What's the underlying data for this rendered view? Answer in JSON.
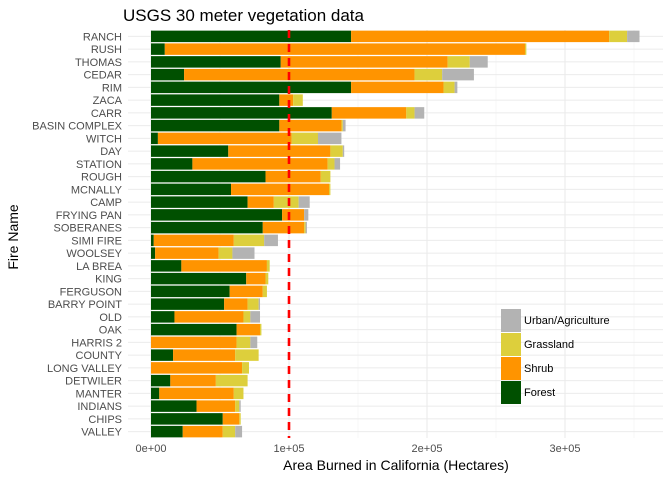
{
  "chart_data": {
    "type": "bar",
    "orientation": "horizontal",
    "stacked": true,
    "title": "USGS 30 meter vegetation data",
    "xlabel": "Area Burned in California (Hectares)",
    "ylabel": "Fire Name",
    "xlim": [
      0,
      370000
    ],
    "x_ticks": [
      0,
      100000,
      200000,
      300000
    ],
    "x_tick_labels": [
      "0e+00",
      "1e+05",
      "2e+05",
      "3e+05"
    ],
    "grid": true,
    "legend_position": "bottom-right",
    "reference_line": {
      "x": 100000,
      "style": "dashed",
      "color": "#ff0000"
    },
    "categories": [
      "RANCH",
      "RUSH",
      "THOMAS",
      "CEDAR",
      "RIM",
      "ZACA",
      "CARR",
      "BASIN COMPLEX",
      "WITCH",
      "DAY",
      "STATION",
      "ROUGH",
      "MCNALLY",
      "CAMP",
      "FRYING PAN",
      "SOBERANES",
      "SIMI FIRE",
      "WOOLSEY",
      "LA BREA",
      "KING",
      "FERGUSON",
      "BARRY POINT",
      "OLD",
      "OAK",
      "HARRIS 2",
      "COUNTY",
      "LONG VALLEY",
      "DETWILER",
      "MANTER",
      "INDIANS",
      "CHIPS",
      "VALLEY"
    ],
    "series": [
      {
        "name": "Forest",
        "color": "#005000",
        "values": [
          145000,
          10000,
          94000,
          24000,
          145000,
          93000,
          131000,
          93000,
          5000,
          56000,
          30000,
          83000,
          58000,
          70000,
          95000,
          81000,
          2000,
          3000,
          22000,
          69000,
          57000,
          53000,
          17000,
          62000,
          0,
          16000,
          0,
          14000,
          6000,
          33000,
          52000,
          23000
        ]
      },
      {
        "name": "Shrub",
        "color": "#ff9400",
        "values": [
          187000,
          261000,
          121000,
          167000,
          67000,
          10000,
          54000,
          45000,
          97000,
          74000,
          98000,
          40000,
          71000,
          19000,
          16000,
          30000,
          58000,
          46000,
          62000,
          14000,
          24000,
          17000,
          50000,
          17000,
          62000,
          45000,
          66000,
          33000,
          54000,
          28000,
          12000,
          29000
        ]
      },
      {
        "name": "Grassland",
        "color": "#ddcf3c",
        "values": [
          13000,
          1000,
          16000,
          20000,
          8000,
          7000,
          6000,
          1000,
          19000,
          9000,
          5000,
          7000,
          1000,
          18000,
          0,
          1000,
          22000,
          10000,
          2000,
          2000,
          3000,
          8000,
          5000,
          1000,
          10000,
          17000,
          5000,
          23000,
          7000,
          3000,
          1000,
          9000
        ]
      },
      {
        "name": "Urban/Agriculture",
        "color": "#b3b3b3",
        "values": [
          9000,
          0,
          13000,
          23000,
          2000,
          0,
          7000,
          2000,
          17000,
          1000,
          4000,
          0,
          0,
          8000,
          3000,
          1000,
          10000,
          16000,
          0,
          0,
          0,
          1000,
          7000,
          0,
          5000,
          0,
          0,
          0,
          0,
          1000,
          0,
          5000
        ]
      }
    ]
  }
}
